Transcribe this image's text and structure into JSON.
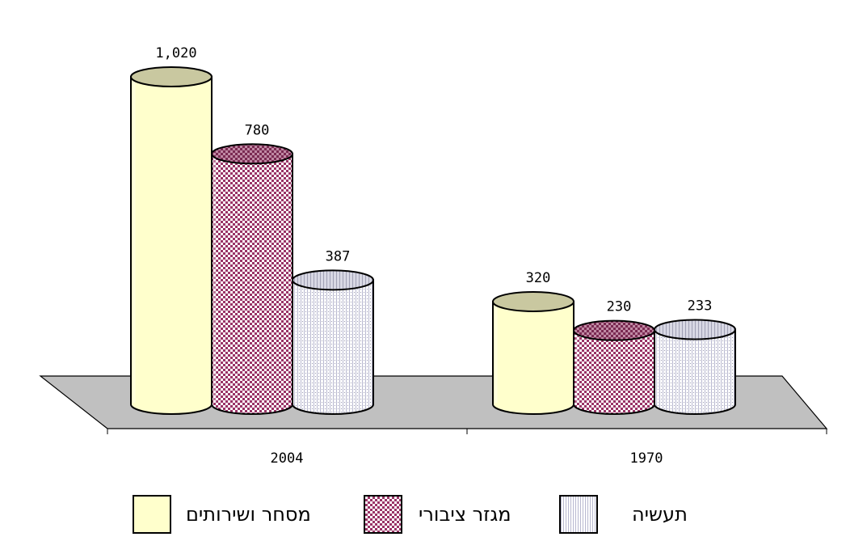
{
  "chart_data": {
    "type": "bar",
    "categories": [
      "2004",
      "1970"
    ],
    "series": [
      {
        "name": "מסחר ושירותים",
        "values": [
          1020,
          320
        ],
        "labels": [
          "1,020",
          "320"
        ],
        "color": "#ffffcc",
        "top_color": "#c9c8a0",
        "pattern": "solid"
      },
      {
        "name": "מגזר ציבורי",
        "values": [
          780,
          230
        ],
        "labels": [
          "780",
          "230"
        ],
        "color": "#993366",
        "top_color": "#7a2a52",
        "pattern": "checker"
      },
      {
        "name": "תעשיה",
        "values": [
          387,
          233
        ],
        "labels": [
          "387",
          "233"
        ],
        "color": "#dcdcf0",
        "top_color": "#b8b8c8",
        "pattern": "dots"
      }
    ],
    "ylim": [
      0,
      1100
    ],
    "grid": false,
    "legend": "bottom",
    "style": "3d-cylinder",
    "floor_color": "#c0c0c0"
  }
}
